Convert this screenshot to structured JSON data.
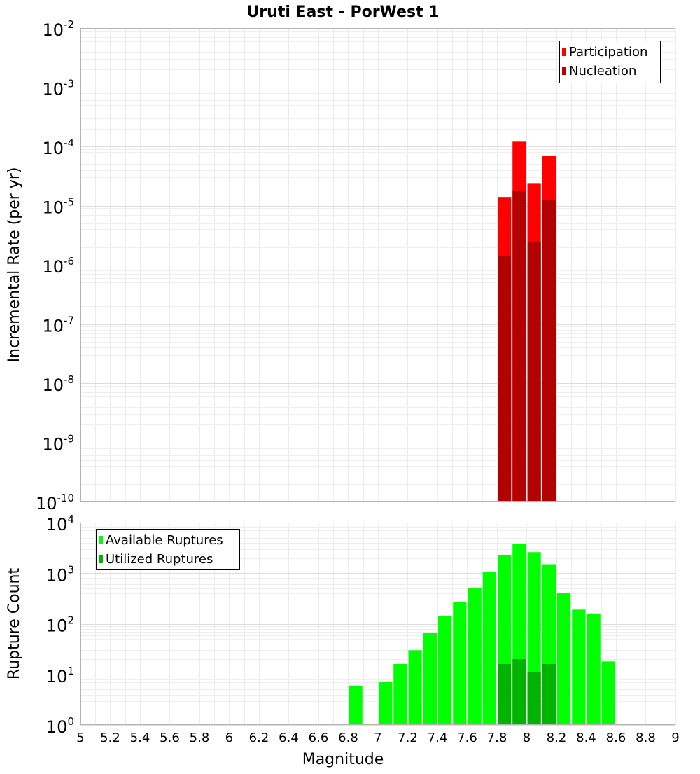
{
  "title": "Uruti East - PorWest 1",
  "chart_data": [
    {
      "id": "rate",
      "type": "bar",
      "scale": "log",
      "ylabel": "Incremental Rate (per yr)",
      "ylim": [
        1e-10,
        0.01
      ],
      "y_tick_exponents": [
        "-10",
        "-9",
        "-8",
        "-7",
        "-6",
        "-5",
        "-4",
        "-3",
        "-2"
      ],
      "xlim": [
        5,
        9
      ],
      "grid": true,
      "legend_position": "top-right",
      "series": [
        {
          "name": "Participation",
          "color": "#ff0000",
          "x": [
            7.85,
            7.95,
            8.05,
            8.15
          ],
          "values": [
            1.4e-05,
            0.00012,
            2.4e-05,
            7e-05
          ]
        },
        {
          "name": "Nucleation",
          "color": "#b30000",
          "x": [
            7.85,
            7.95,
            8.05,
            8.15
          ],
          "values": [
            1.4e-06,
            1.8e-05,
            2.4e-06,
            1.25e-05
          ]
        }
      ]
    },
    {
      "id": "count",
      "type": "bar",
      "scale": "log",
      "ylabel": "Rupture Count",
      "xlabel": "Magnitude",
      "ylim": [
        1,
        10000
      ],
      "y_tick_exponents": [
        "0",
        "1",
        "2",
        "3",
        "4"
      ],
      "xlim": [
        5,
        9
      ],
      "x_ticks": [
        "5",
        "5.2",
        "5.4",
        "5.6",
        "5.8",
        "6",
        "6.2",
        "6.4",
        "6.6",
        "6.8",
        "7",
        "7.2",
        "7.4",
        "7.6",
        "7.8",
        "8",
        "8.2",
        "8.4",
        "8.6",
        "8.8",
        "9"
      ],
      "grid": true,
      "legend_position": "top-left",
      "series": [
        {
          "name": "Available Ruptures",
          "color": "#00ff00",
          "x": [
            6.85,
            6.95,
            7.05,
            7.15,
            7.25,
            7.35,
            7.45,
            7.55,
            7.65,
            7.75,
            7.85,
            7.95,
            8.05,
            8.15,
            8.25,
            8.35,
            8.45,
            8.55
          ],
          "values": [
            6,
            1,
            7,
            16,
            30,
            65,
            140,
            270,
            500,
            1070,
            2300,
            3800,
            2600,
            1500,
            400,
            190,
            160,
            18
          ]
        },
        {
          "name": "Utilized Ruptures",
          "color": "#00b300",
          "x": [
            7.85,
            7.95,
            8.05,
            8.15
          ],
          "values": [
            16,
            20,
            11,
            16
          ]
        }
      ]
    }
  ]
}
